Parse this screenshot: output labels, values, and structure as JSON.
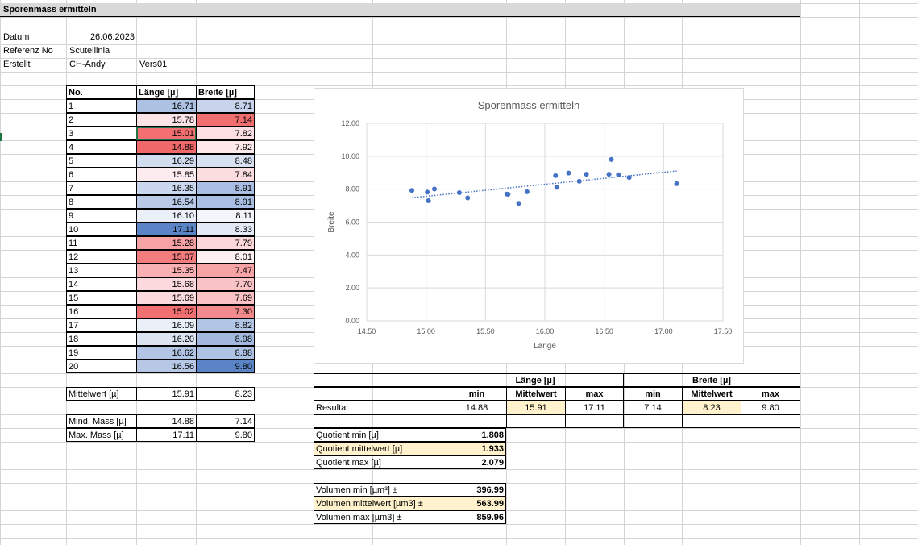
{
  "sheet": {
    "title": "Sporenmass ermitteln",
    "info": [
      {
        "label": "Datum",
        "value": "26.06.2023",
        "extra": ""
      },
      {
        "label": "Referenz No",
        "value": "Scutellinia",
        "extra": ""
      },
      {
        "label": "Erstellt",
        "value": "CH-Andy",
        "extra": "Vers01"
      }
    ],
    "table_headers": {
      "no": "No.",
      "laenge": "Länge  [µ]",
      "breite": "Breite [µ]"
    },
    "rows": [
      {
        "no": "1",
        "l": "16.71",
        "b": "8.71",
        "lc": "#adc1e3",
        "bc": "#c7d4ec"
      },
      {
        "no": "2",
        "l": "15.78",
        "b": "7.14",
        "lc": "#fbe3e6",
        "bc": "#f26f6f"
      },
      {
        "no": "3",
        "l": "15.01",
        "b": "7.82",
        "lc": "#f36f71",
        "bc": "#fcdfe2"
      },
      {
        "no": "4",
        "l": "14.88",
        "b": "7.92",
        "lc": "#f0686a",
        "bc": "#fde8ea"
      },
      {
        "no": "5",
        "l": "16.29",
        "b": "8.48",
        "lc": "#d1dcef",
        "bc": "#d7e1f1"
      },
      {
        "no": "6",
        "l": "15.85",
        "b": "7.84",
        "lc": "#fdecee",
        "bc": "#fbdde0"
      },
      {
        "no": "7",
        "l": "16.35",
        "b": "8.91",
        "lc": "#cbd7ee",
        "bc": "#a9bee2"
      },
      {
        "no": "8",
        "l": "16.54",
        "b": "8.91",
        "lc": "#b9cae8",
        "bc": "#a9bee2"
      },
      {
        "no": "9",
        "l": "16.10",
        "b": "8.11",
        "lc": "#eaeff8",
        "bc": "#f3f5fa"
      },
      {
        "no": "10",
        "l": "17.11",
        "b": "8.33",
        "lc": "#5b84c6",
        "bc": "#e3e9f5"
      },
      {
        "no": "11",
        "l": "15.28",
        "b": "7.79",
        "lc": "#f7a3a6",
        "bc": "#fbd7da"
      },
      {
        "no": "12",
        "l": "15.07",
        "b": "8.01",
        "lc": "#f37c7e",
        "bc": "#fdf0f1"
      },
      {
        "no": "13",
        "l": "15.35",
        "b": "7.47",
        "lc": "#f8b0b3",
        "bc": "#f6a3a6"
      },
      {
        "no": "14",
        "l": "15.68",
        "b": "7.70",
        "lc": "#fbd9dc",
        "bc": "#f9c3c6"
      },
      {
        "no": "15",
        "l": "15.69",
        "b": "7.69",
        "lc": "#fbdadd",
        "bc": "#f9c1c4"
      },
      {
        "no": "16",
        "l": "15.02",
        "b": "7.30",
        "lc": "#f37072",
        "bc": "#f38b8e"
      },
      {
        "no": "17",
        "l": "16.09",
        "b": "8.82",
        "lc": "#ebf0f8",
        "bc": "#b2c5e5"
      },
      {
        "no": "18",
        "l": "16.20",
        "b": "8.98",
        "lc": "#dce4f2",
        "bc": "#a2b8df"
      },
      {
        "no": "19",
        "l": "16.62",
        "b": "8.88",
        "lc": "#b2c5e5",
        "bc": "#aec2e3"
      },
      {
        "no": "20",
        "l": "16.56",
        "b": "9.80",
        "lc": "#b7c8e7",
        "bc": "#5b84c6"
      }
    ],
    "mittelwert": {
      "label": "Mittelwert  [µ]",
      "l": "15.91",
      "b": "8.23"
    },
    "mind": {
      "label": "Mind. Mass  [µ]",
      "l": "14.88",
      "b": "7.14"
    },
    "max": {
      "label": "Max. Mass  [µ]",
      "l": "17.11",
      "b": "9.80"
    }
  },
  "result_table": {
    "group_laenge": "Länge  [µ]",
    "group_breite": "Breite [µ]",
    "sub": [
      "min",
      "Mittelwert",
      "max",
      "min",
      "Mittelwert",
      "max"
    ],
    "row_label": "Resultat",
    "values": [
      "14.88",
      "15.91",
      "17.11",
      "7.14",
      "8.23",
      "9.80"
    ]
  },
  "quotients": [
    {
      "label": "Quotient min  [µ]",
      "value": "1.808",
      "hl": false
    },
    {
      "label": "Quotient mittelwert [µ]",
      "value": "1.933",
      "hl": true
    },
    {
      "label": "Quotient max  [µ]",
      "value": "2.079",
      "hl": false
    }
  ],
  "volumes": [
    {
      "label": "Volumen min [µm³] ±",
      "value": "396.99",
      "hl": false
    },
    {
      "label": "Volumen mittelwert [µm3] ±",
      "value": "563.99",
      "hl": true
    },
    {
      "label": "Volumen max [µm3] ±",
      "value": "859.96",
      "hl": false
    }
  ],
  "colors": {
    "highlight": "#fff2cc",
    "axis": "#d9d9d9",
    "marker": "#4472c4",
    "header_bg": "#d9d9d9"
  },
  "chart_data": {
    "type": "scatter",
    "title": "Sporenmass ermitteln",
    "xlabel": "Länge",
    "ylabel": "Breite",
    "xlim": [
      14.5,
      17.5
    ],
    "ylim": [
      0,
      12
    ],
    "xticks": [
      "14.50",
      "15.00",
      "15.50",
      "16.00",
      "16.50",
      "17.00",
      "17.50"
    ],
    "yticks": [
      "0.00",
      "2.00",
      "4.00",
      "6.00",
      "8.00",
      "10.00",
      "12.00"
    ],
    "grid": true,
    "trendline": "linear, dotted",
    "x": [
      16.71,
      15.78,
      15.01,
      14.88,
      16.29,
      15.85,
      16.35,
      16.54,
      16.1,
      17.11,
      15.28,
      15.07,
      15.35,
      15.68,
      15.69,
      15.02,
      16.09,
      16.2,
      16.62,
      16.56
    ],
    "y": [
      8.71,
      7.14,
      7.82,
      7.92,
      8.48,
      7.84,
      8.91,
      8.91,
      8.11,
      8.33,
      7.79,
      8.01,
      7.47,
      7.7,
      7.69,
      7.3,
      8.82,
      8.98,
      8.88,
      9.8
    ]
  }
}
